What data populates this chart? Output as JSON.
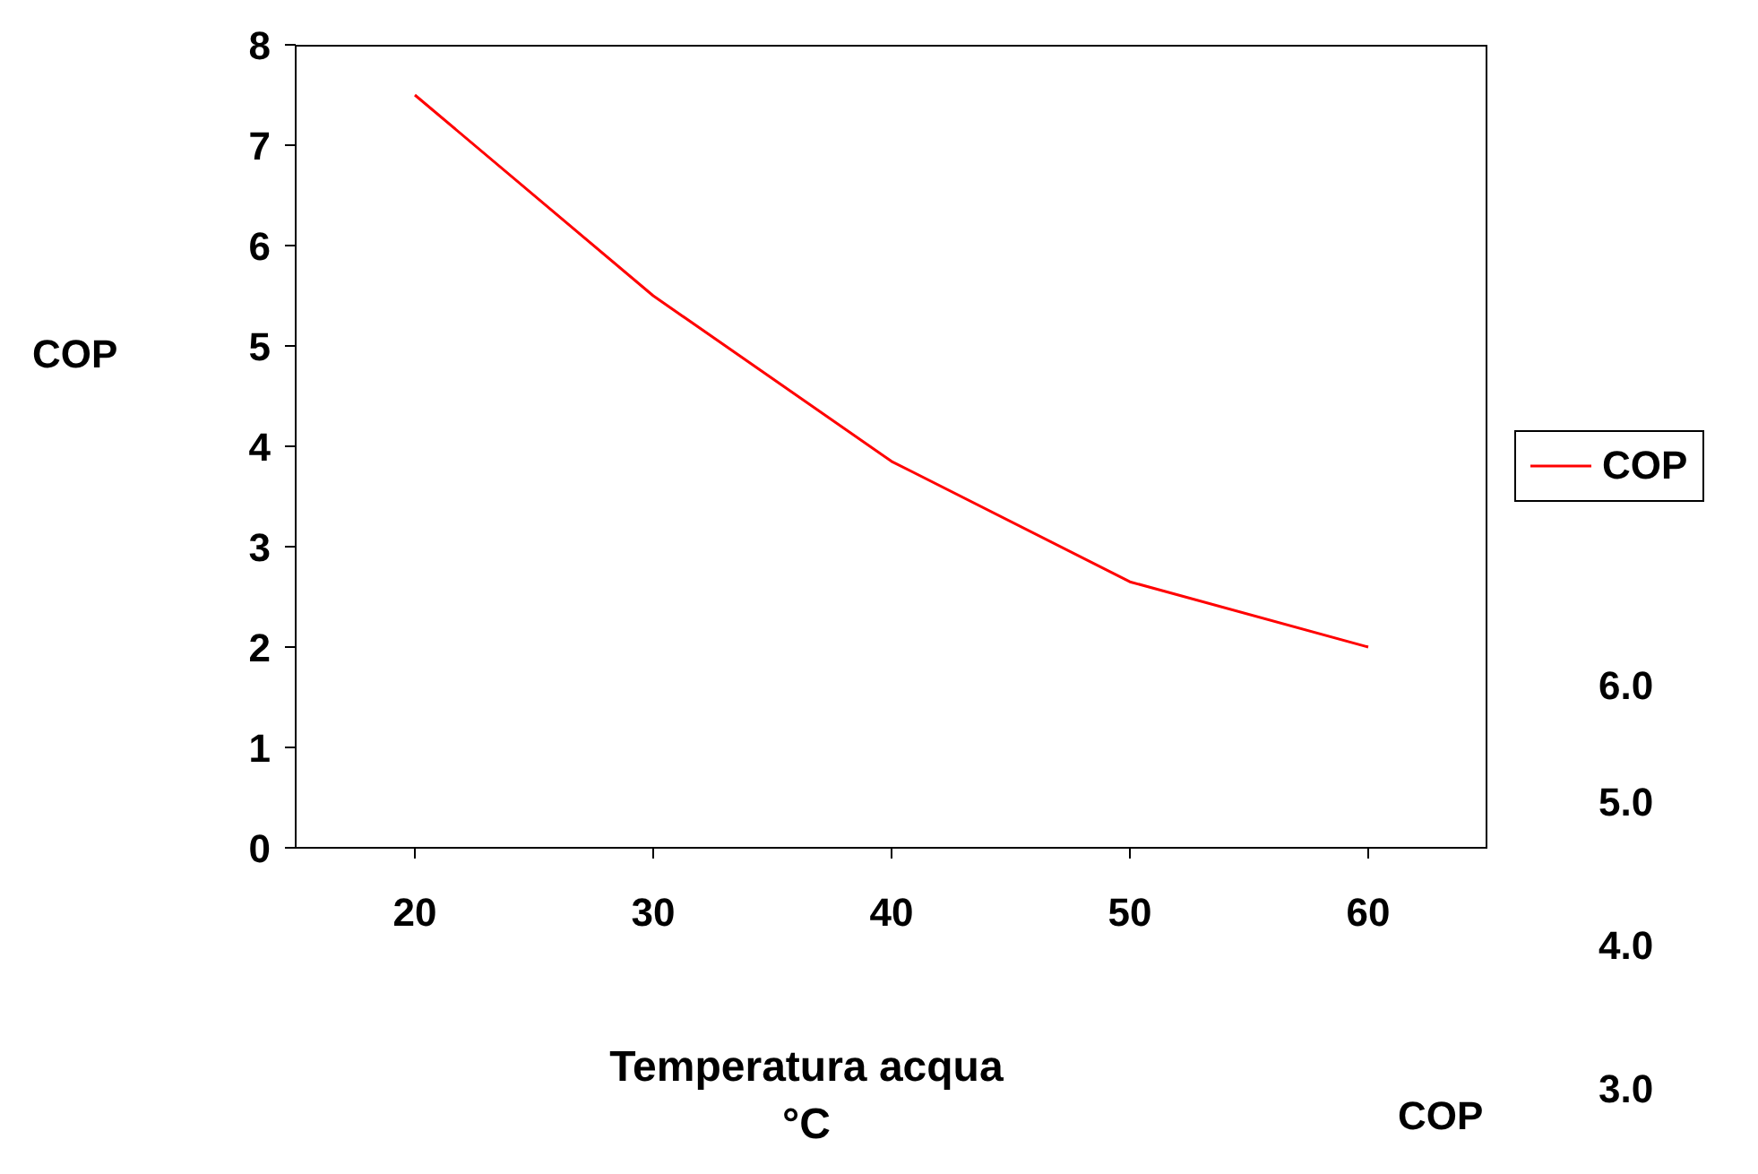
{
  "chart_data": {
    "type": "line",
    "xlabel": "Temperatura acqua °C",
    "ylabel": "COP",
    "categories": [
      "20",
      "30",
      "40",
      "50",
      "60"
    ],
    "series": [
      {
        "name": "COP",
        "color": "#ff0000",
        "values": [
          7.5,
          5.5,
          3.85,
          2.65,
          2.0
        ]
      }
    ],
    "ylim": [
      0,
      8
    ],
    "yticks": [
      0,
      1,
      2,
      3,
      4,
      5,
      6,
      7,
      8
    ],
    "grid": false,
    "legend": "right",
    "marker": "none",
    "line_style": "solid",
    "annotations": [
      "6.0",
      "5.0",
      "4.0",
      "3.0",
      "COP"
    ]
  }
}
